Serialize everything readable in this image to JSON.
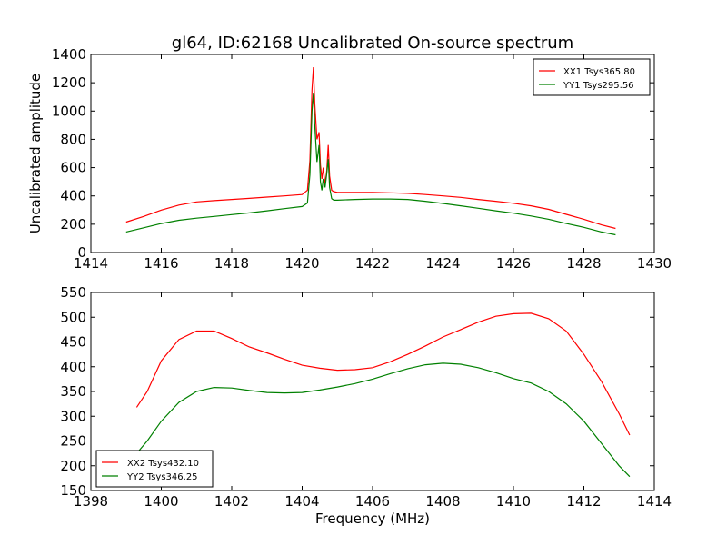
{
  "chart_data": [
    {
      "type": "line",
      "title": "gl64, ID:62168 Uncalibrated On-source spectrum",
      "xlabel": "",
      "ylabel": "Uncalibrated amplitude",
      "xlim": [
        1414,
        1430
      ],
      "ylim": [
        0,
        1400
      ],
      "xticks": [
        1414,
        1416,
        1418,
        1420,
        1422,
        1424,
        1426,
        1428,
        1430
      ],
      "yticks": [
        0,
        200,
        400,
        600,
        800,
        1000,
        1200,
        1400
      ],
      "legend_position": "top-right",
      "series": [
        {
          "name": "XX1 Tsys365.80",
          "color": "#ff0000",
          "x": [
            1415.0,
            1415.5,
            1416.0,
            1416.5,
            1417.0,
            1417.5,
            1418.0,
            1418.5,
            1419.0,
            1419.5,
            1420.0,
            1420.15,
            1420.22,
            1420.28,
            1420.32,
            1420.36,
            1420.42,
            1420.48,
            1420.52,
            1420.56,
            1420.6,
            1420.65,
            1420.7,
            1420.74,
            1420.78,
            1420.84,
            1420.9,
            1421.0,
            1421.5,
            1422.0,
            1422.5,
            1423.0,
            1423.5,
            1424.0,
            1424.5,
            1425.0,
            1425.5,
            1426.0,
            1426.5,
            1427.0,
            1427.5,
            1428.0,
            1428.5,
            1428.9
          ],
          "y": [
            215,
            255,
            300,
            335,
            358,
            367,
            375,
            383,
            392,
            400,
            410,
            440,
            650,
            1150,
            1310,
            1050,
            800,
            850,
            620,
            520,
            600,
            480,
            580,
            760,
            540,
            440,
            430,
            425,
            425,
            425,
            422,
            418,
            410,
            400,
            390,
            375,
            362,
            348,
            330,
            305,
            270,
            235,
            195,
            170
          ]
        },
        {
          "name": "YY1 Tsys295.56",
          "color": "#008000",
          "x": [
            1415.0,
            1415.5,
            1416.0,
            1416.5,
            1417.0,
            1417.5,
            1418.0,
            1418.5,
            1419.0,
            1419.5,
            1420.0,
            1420.15,
            1420.22,
            1420.28,
            1420.32,
            1420.36,
            1420.42,
            1420.48,
            1420.52,
            1420.56,
            1420.6,
            1420.65,
            1420.7,
            1420.74,
            1420.78,
            1420.84,
            1420.9,
            1421.0,
            1421.5,
            1422.0,
            1422.5,
            1423.0,
            1423.5,
            1424.0,
            1424.5,
            1425.0,
            1425.5,
            1426.0,
            1426.5,
            1427.0,
            1427.5,
            1428.0,
            1428.5,
            1428.9
          ],
          "y": [
            145,
            175,
            205,
            228,
            243,
            255,
            268,
            280,
            295,
            310,
            325,
            350,
            550,
            1000,
            1130,
            900,
            640,
            760,
            500,
            440,
            520,
            460,
            560,
            660,
            460,
            380,
            370,
            370,
            375,
            378,
            378,
            375,
            362,
            347,
            330,
            313,
            295,
            278,
            258,
            235,
            205,
            178,
            145,
            125
          ]
        }
      ]
    },
    {
      "type": "line",
      "title": "",
      "xlabel": "Frequency (MHz)",
      "ylabel": "",
      "xlim": [
        1398,
        1414
      ],
      "ylim": [
        150,
        550
      ],
      "xticks": [
        1398,
        1400,
        1402,
        1404,
        1406,
        1408,
        1410,
        1412,
        1414
      ],
      "yticks": [
        150,
        200,
        250,
        300,
        350,
        400,
        450,
        500,
        550
      ],
      "legend_position": "bottom-left",
      "series": [
        {
          "name": "XX2 Tsys432.10",
          "color": "#ff0000",
          "x": [
            1399.3,
            1399.6,
            1400.0,
            1400.5,
            1401.0,
            1401.5,
            1402.0,
            1402.5,
            1403.0,
            1403.5,
            1404.0,
            1404.5,
            1405.0,
            1405.5,
            1406.0,
            1406.5,
            1407.0,
            1407.5,
            1408.0,
            1408.5,
            1409.0,
            1409.5,
            1410.0,
            1410.5,
            1411.0,
            1411.5,
            1412.0,
            1412.5,
            1413.0,
            1413.3
          ],
          "y": [
            318,
            350,
            412,
            455,
            472,
            472,
            457,
            440,
            428,
            415,
            403,
            397,
            393,
            394,
            398,
            410,
            425,
            442,
            460,
            475,
            490,
            502,
            507,
            508,
            497,
            472,
            425,
            370,
            305,
            262
          ]
        },
        {
          "name": "YY2 Tsys346.25",
          "color": "#008000",
          "x": [
            1399.3,
            1399.6,
            1400.0,
            1400.5,
            1401.0,
            1401.5,
            1402.0,
            1402.5,
            1403.0,
            1403.5,
            1404.0,
            1404.5,
            1405.0,
            1405.5,
            1406.0,
            1406.5,
            1407.0,
            1407.5,
            1408.0,
            1408.5,
            1409.0,
            1409.5,
            1410.0,
            1410.5,
            1411.0,
            1411.5,
            1412.0,
            1412.5,
            1413.0,
            1413.3
          ],
          "y": [
            225,
            250,
            290,
            328,
            350,
            358,
            357,
            352,
            348,
            347,
            348,
            353,
            359,
            366,
            375,
            386,
            396,
            404,
            407,
            405,
            398,
            388,
            376,
            367,
            350,
            325,
            290,
            245,
            200,
            178
          ]
        }
      ]
    }
  ]
}
